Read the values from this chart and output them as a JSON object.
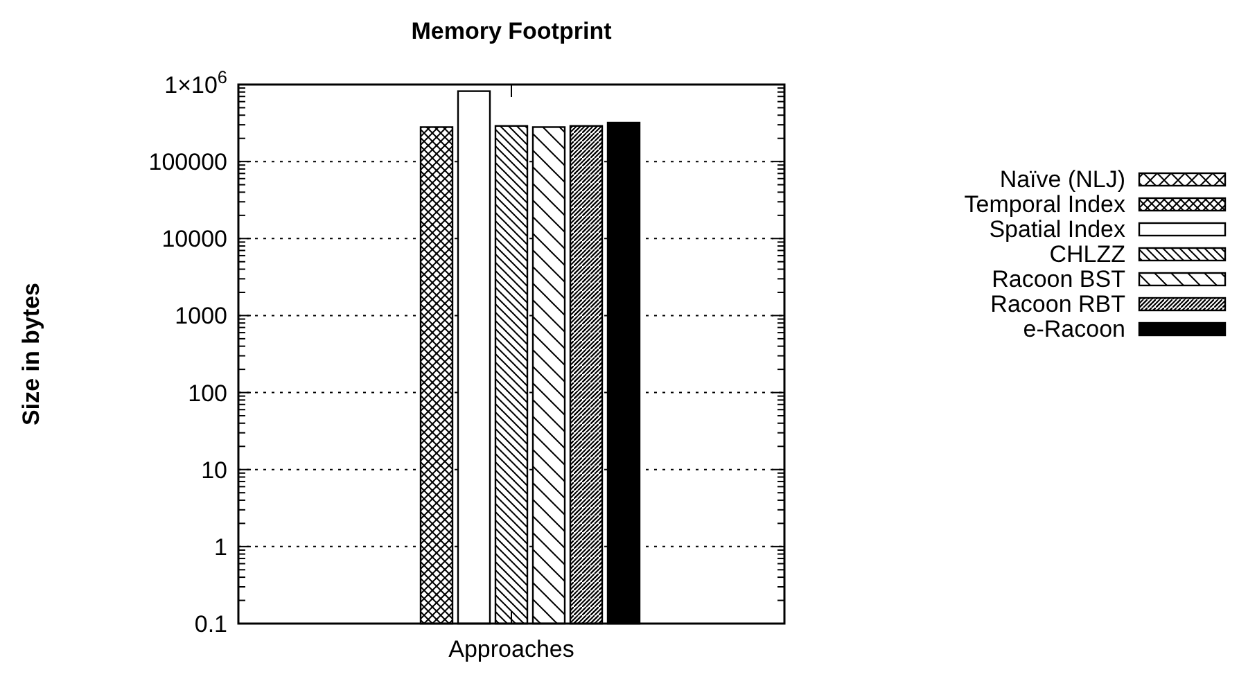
{
  "chart_data": {
    "type": "bar",
    "title": "Memory Footprint",
    "xlabel": "Approaches",
    "ylabel": "Size in bytes",
    "categories": [
      "Approaches"
    ],
    "log": true,
    "ylim": [
      0.1,
      1000000
    ],
    "yticks": [
      0.1,
      1,
      10,
      100,
      1000,
      10000,
      100000,
      {
        "value": 1000000,
        "label": "1×10$^{6}$"
      }
    ],
    "grid": "y",
    "legend": "right",
    "series": [
      {
        "name": "Naïve (NLJ)",
        "color": "#000000",
        "values": [
          null
        ]
      },
      {
        "name": "Temporal Index",
        "color": "#000000",
        "values": [
          280000
        ]
      },
      {
        "name": "Spatial Index",
        "color": "#000000",
        "values": [
          820000
        ]
      },
      {
        "name": "CHLZZ",
        "color": "#000000",
        "values": [
          290000
        ]
      },
      {
        "name": "Racoon BST",
        "color": "#000000",
        "values": [
          280000
        ]
      },
      {
        "name": "Racoon RBT",
        "color": "#000000",
        "values": [
          290000
        ]
      },
      {
        "name": "e-Racoon",
        "color": "#000000",
        "values": [
          320000
        ]
      }
    ]
  }
}
